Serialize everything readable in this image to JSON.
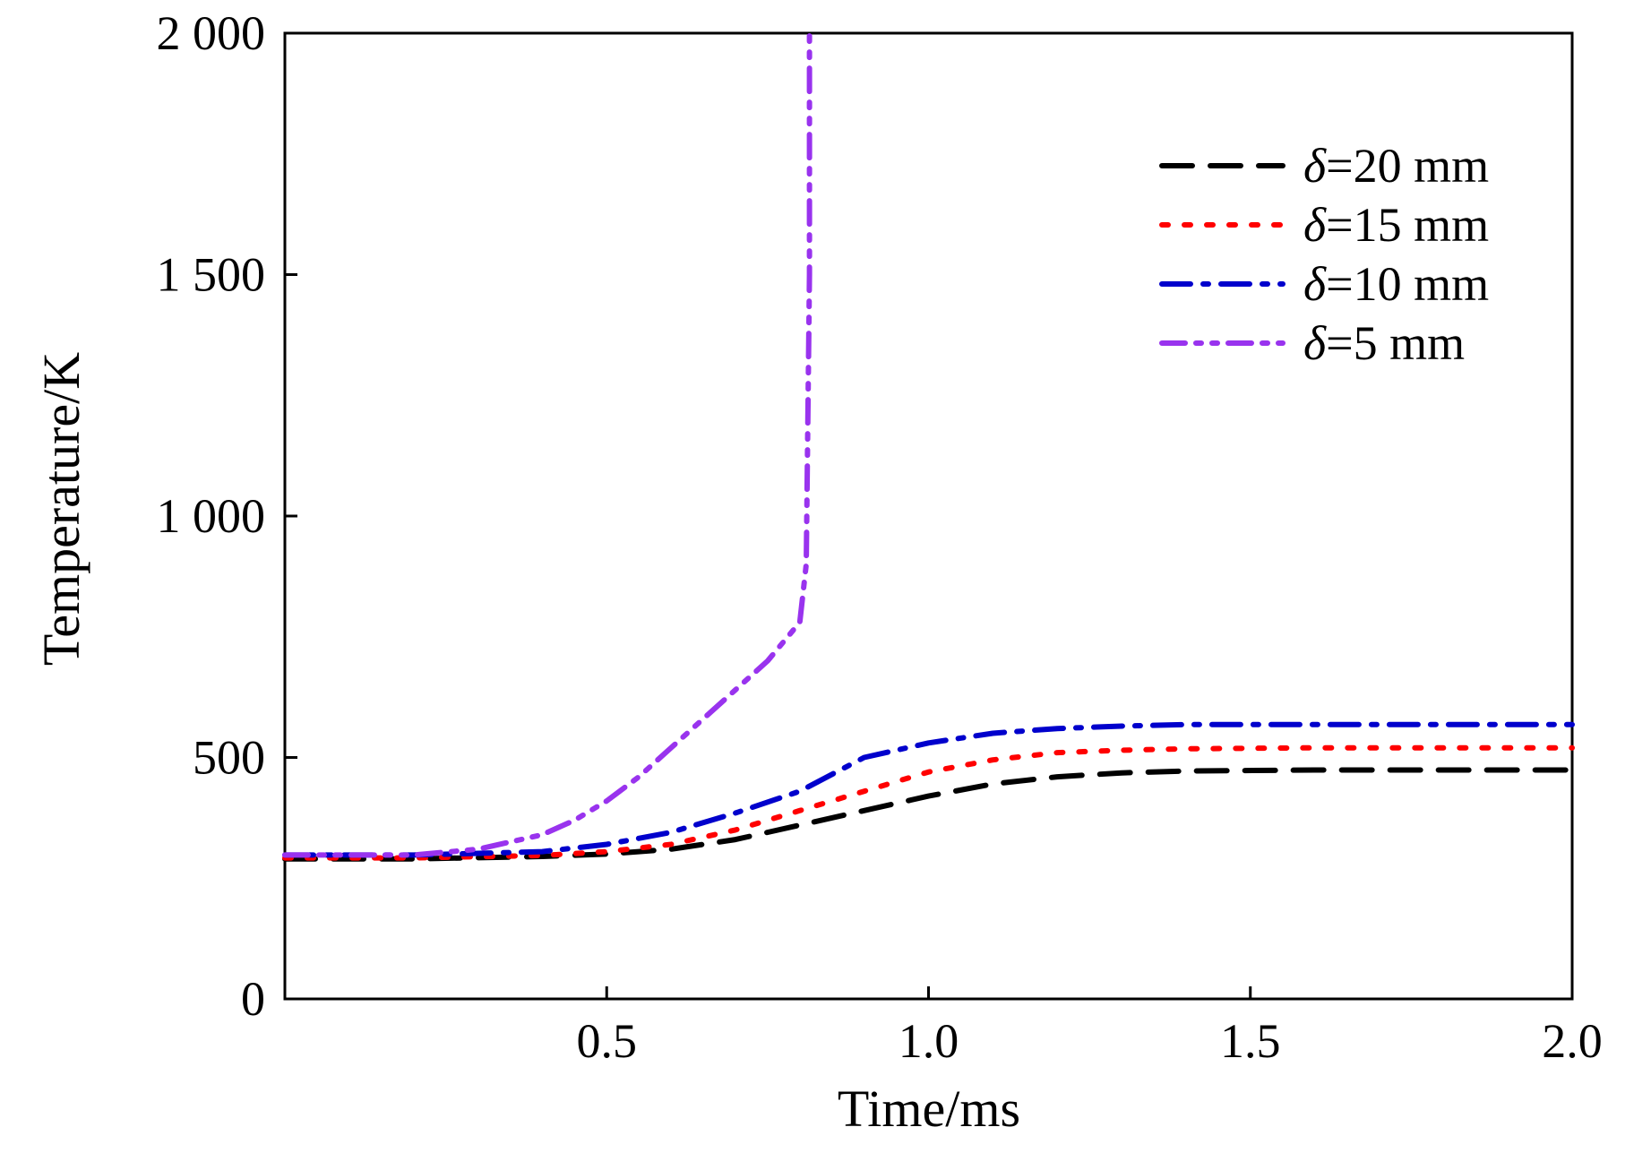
{
  "chart_data": {
    "type": "line",
    "title": "",
    "xlabel": "Time/ms",
    "ylabel": "Temperature/K",
    "xlim": [
      0,
      2.0
    ],
    "ylim": [
      0,
      2000
    ],
    "xticks": [
      0.5,
      1.0,
      1.5,
      2.0
    ],
    "xtick_labels": [
      "0.5",
      "1.0",
      "1.5",
      "2.0"
    ],
    "yticks": [
      0,
      500,
      1000,
      1500,
      2000
    ],
    "ytick_labels": [
      "0",
      "500",
      "1 000",
      "1 500",
      "2 000"
    ],
    "grid": false,
    "legend_position": "top-right",
    "series": [
      {
        "name": "δ=20 mm",
        "legend_symbol": "δ",
        "legend_value": "=20 mm",
        "color": "#000000",
        "style": "dashed",
        "x": [
          0,
          0.2,
          0.4,
          0.5,
          0.6,
          0.7,
          0.8,
          0.9,
          1.0,
          1.1,
          1.2,
          1.3,
          1.4,
          1.6,
          1.8,
          2.0
        ],
        "y": [
          290,
          290,
          295,
          300,
          310,
          330,
          360,
          390,
          420,
          445,
          460,
          468,
          472,
          474,
          474,
          474
        ]
      },
      {
        "name": "δ=15 mm",
        "legend_symbol": "δ",
        "legend_value": "=15 mm",
        "color": "#ff0000",
        "style": "dotted",
        "x": [
          0,
          0.2,
          0.4,
          0.5,
          0.6,
          0.7,
          0.8,
          0.9,
          1.0,
          1.1,
          1.2,
          1.3,
          1.4,
          1.6,
          1.8,
          2.0
        ],
        "y": [
          292,
          292,
          297,
          305,
          320,
          350,
          390,
          430,
          470,
          495,
          510,
          515,
          518,
          520,
          520,
          520
        ]
      },
      {
        "name": "δ=10 mm",
        "legend_symbol": "δ",
        "legend_value": "=10 mm",
        "color": "#0000cc",
        "style": "dash-dot",
        "x": [
          0,
          0.2,
          0.4,
          0.5,
          0.6,
          0.7,
          0.8,
          0.9,
          1.0,
          1.1,
          1.2,
          1.3,
          1.4,
          1.6,
          1.8,
          2.0
        ],
        "y": [
          298,
          298,
          305,
          320,
          345,
          385,
          430,
          500,
          530,
          550,
          560,
          565,
          568,
          568,
          568,
          568
        ]
      },
      {
        "name": "δ=5 mm",
        "legend_symbol": "δ",
        "legend_value": "=5 mm",
        "color": "#9933ee",
        "style": "dash-dot-dot",
        "x": [
          0,
          0.2,
          0.3,
          0.4,
          0.45,
          0.5,
          0.55,
          0.6,
          0.65,
          0.7,
          0.75,
          0.8,
          0.81,
          0.815,
          0.815
        ],
        "y": [
          298,
          298,
          310,
          340,
          370,
          410,
          460,
          520,
          580,
          640,
          700,
          780,
          900,
          1500,
          2000
        ]
      }
    ]
  }
}
